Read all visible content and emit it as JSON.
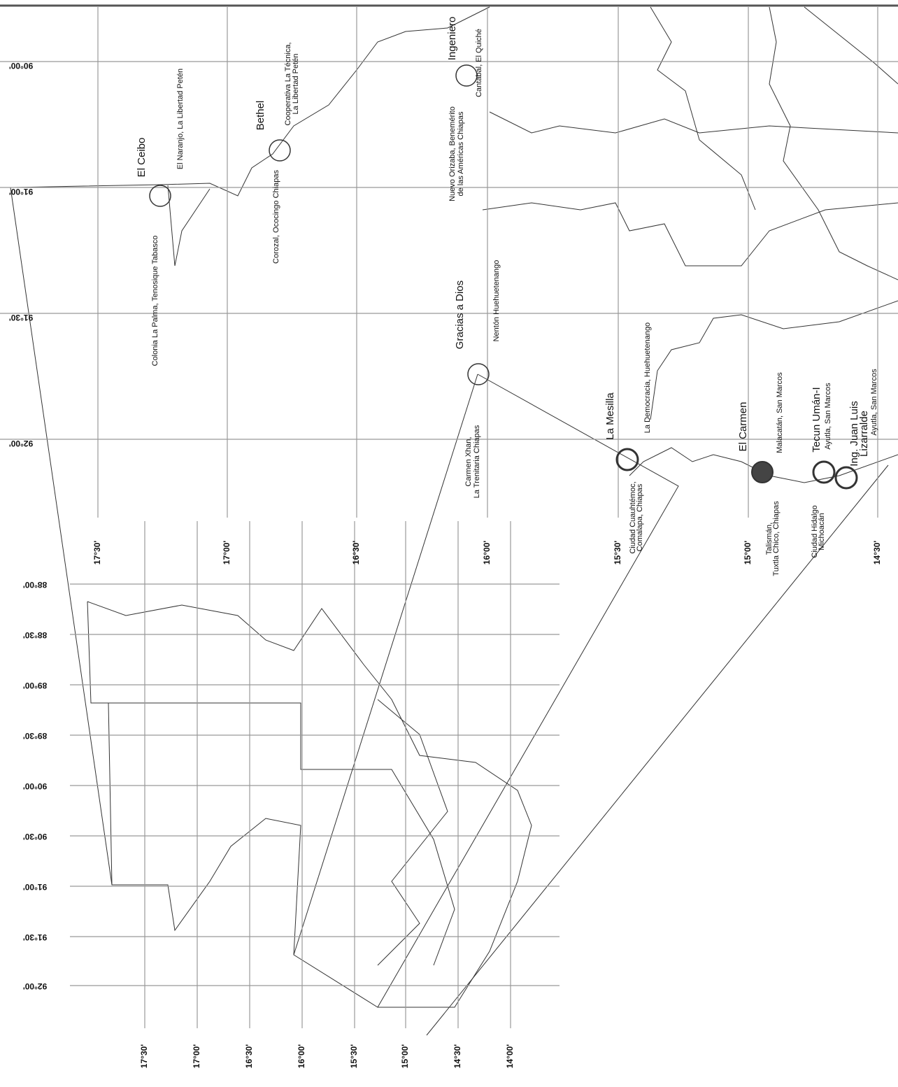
{
  "main_map": {
    "latitude_labels": [
      "17°30'",
      "17°00'",
      "16°30'",
      "16°00'",
      "15°30'",
      "15°00'",
      "14°30'"
    ],
    "longitude_labels": [
      "90°00'",
      "91°00'",
      "91°30'",
      "92°00'"
    ]
  },
  "inset_map": {
    "longitude_labels": [
      "88°00'",
      "88°30'",
      "89°00'",
      "89°30'",
      "90°00'",
      "90°30'",
      "91°00'",
      "91°30'",
      "92°00'"
    ],
    "latitude_labels": [
      "17°30'",
      "17°00'",
      "16°30'",
      "16°00'",
      "15°30'",
      "15°00'",
      "14°30'",
      "14°00'"
    ]
  },
  "crossings": [
    {
      "name": "El Ceibo",
      "north": [
        "El Naranjo, La Libertad Petén"
      ],
      "south": [
        "Colonia La Palma, Tenosique Tabasco"
      ]
    },
    {
      "name": "Bethel",
      "north": [
        "Cooperativa La Técnica,",
        "La Libertad Petén"
      ],
      "south": [
        "Corozal, Ococingo Chiapas"
      ]
    },
    {
      "name": "Ingeniero",
      "north": [
        "Cantabal, El Quiché"
      ],
      "south": [
        "Nuevo Orizaba, Benemérito",
        "de las Américas Chiapas"
      ]
    },
    {
      "name": "Gracias a Dios",
      "north": [
        "Nentón Huehuetenango"
      ],
      "south": [
        "Carmen Xhan,",
        "La Trenitaria Chiapas"
      ]
    },
    {
      "name": "La Mesilla",
      "north": [
        "La Democracia, Huehuetenango"
      ],
      "south": [
        "Ciudad Cuauhtémoc,",
        "Comalapa, Chiapas"
      ]
    },
    {
      "name": "El Carmen",
      "north": [
        "Malacatán, San Marcos"
      ],
      "south": [
        "Talismán,",
        "Tuxtla Chico, Chiapas"
      ]
    },
    {
      "name": "Tecun Umán-I",
      "north": [
        "Ayutla, San Marcos"
      ],
      "south": [
        "Ciudad Hidalgo",
        "Michoacán"
      ]
    },
    {
      "name": [
        "Ing. Juan Luis",
        "Lizarralde"
      ],
      "north": [
        "Ayutla, San Marcos"
      ],
      "south": []
    }
  ]
}
